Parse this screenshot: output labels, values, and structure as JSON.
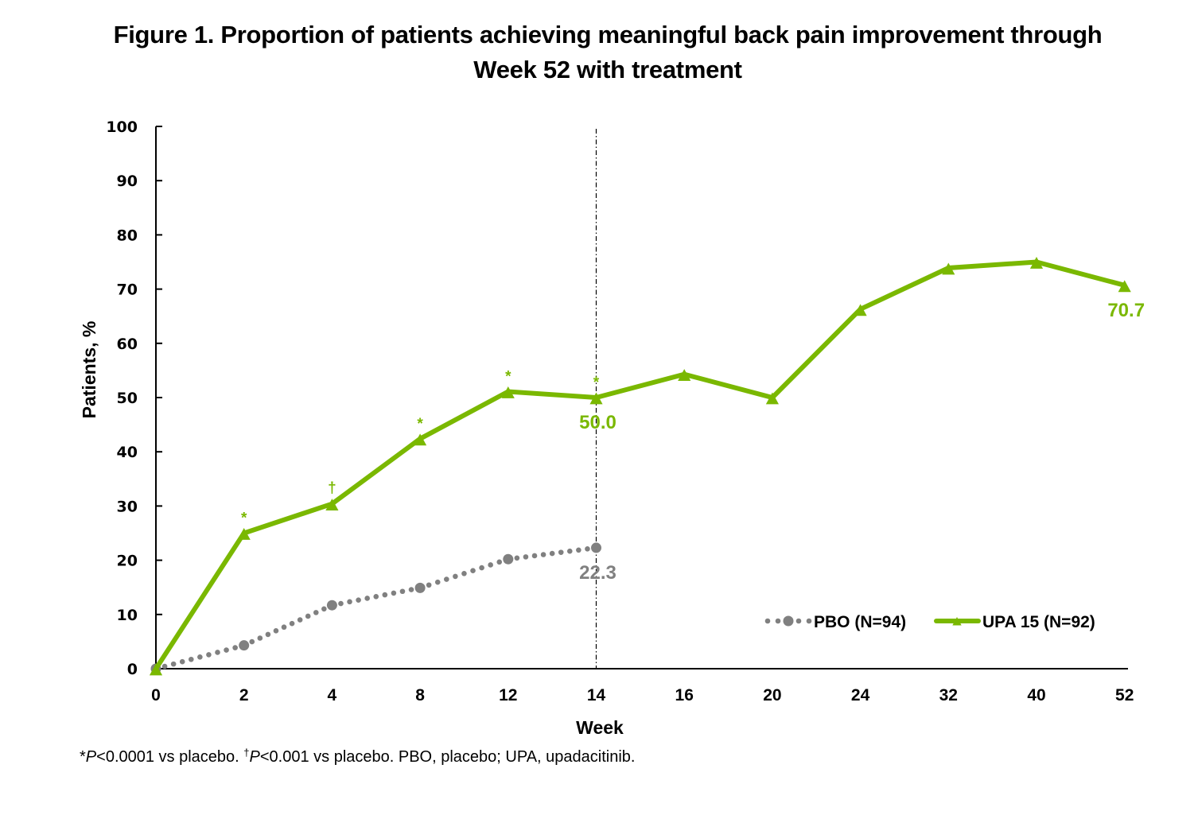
{
  "chart_data": {
    "type": "line",
    "title": "Figure 1. Proportion of patients achieving meaningful back pain improvement through Week 52 with treatment",
    "title_lines": [
      "Figure 1. Proportion of patients achieving meaningful back pain improvement through",
      "Week 52 with treatment"
    ],
    "xlabel": "Week",
    "ylabel": "Patients, %",
    "categories": [
      "0",
      "2",
      "4",
      "8",
      "12",
      "14",
      "16",
      "20",
      "24",
      "32",
      "40",
      "52"
    ],
    "x_scale": "categorical",
    "ylim": [
      0,
      100
    ],
    "yticks": [
      0,
      10,
      20,
      30,
      40,
      50,
      60,
      70,
      80,
      90,
      100
    ],
    "grid": false,
    "reference_line": {
      "category": "14",
      "style": "dash-dot",
      "color": "#000000"
    },
    "legend": {
      "position": "bottom-right",
      "orientation": "horizontal"
    },
    "series": [
      {
        "name": "PBO (N=94)",
        "color": "#808080",
        "line_style": "dotted",
        "marker": "circle",
        "values": [
          0,
          4.3,
          11.7,
          14.9,
          20.2,
          22.3,
          null,
          null,
          null,
          null,
          null,
          null
        ],
        "data_labels": [
          {
            "category": "14",
            "text": "22.3"
          }
        ],
        "significance": []
      },
      {
        "name": "UPA 15 (N=92)",
        "color": "#7AB800",
        "line_style": "solid",
        "marker": "triangle",
        "values": [
          0,
          25.0,
          30.4,
          42.4,
          51.1,
          50.0,
          54.3,
          50.0,
          66.3,
          73.9,
          75.0,
          70.7
        ],
        "data_labels": [
          {
            "category": "14",
            "text": "50.0"
          },
          {
            "category": "52",
            "text": "70.7"
          }
        ],
        "significance": [
          {
            "category": "2",
            "mark": "*"
          },
          {
            "category": "4",
            "mark": "†"
          },
          {
            "category": "8",
            "mark": "*"
          },
          {
            "category": "12",
            "mark": "*"
          },
          {
            "category": "14",
            "mark": "*"
          }
        ]
      }
    ]
  },
  "footnote": {
    "star": "*",
    "p1_italic": "P",
    "p1_text": "<0.0001 vs placebo. ",
    "dagger": "†",
    "p2_italic": "P",
    "p2_text": "<0.001 vs placebo. PBO, placebo; UPA, upadacitinib."
  }
}
